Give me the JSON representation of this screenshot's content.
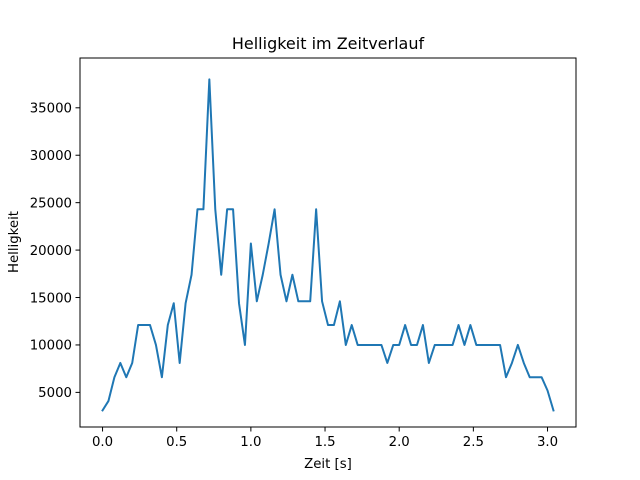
{
  "chart_data": {
    "type": "line",
    "title": "Helligkeit im Zeitverlauf",
    "xlabel": "Zeit [s]",
    "ylabel": "Helligkeit",
    "xlim": [
      -0.152,
      3.192
    ],
    "ylim": [
      1350,
      40250
    ],
    "xticks": [
      0.0,
      0.5,
      1.0,
      1.5,
      2.0,
      2.5,
      3.0
    ],
    "xtick_labels": [
      "0.0",
      "0.5",
      "1.0",
      "1.5",
      "2.0",
      "2.5",
      "3.0"
    ],
    "yticks": [
      5000,
      10000,
      15000,
      20000,
      25000,
      30000,
      35000
    ],
    "ytick_labels": [
      "5000",
      "10000",
      "15000",
      "20000",
      "25000",
      "30000",
      "35000"
    ],
    "grid": false,
    "series_color": "#1f77b4",
    "series": [
      {
        "x": [
          0.0,
          0.04,
          0.08,
          0.12,
          0.16,
          0.2,
          0.24,
          0.28,
          0.32,
          0.36,
          0.4,
          0.44,
          0.48,
          0.52,
          0.56,
          0.6,
          0.64,
          0.68,
          0.72,
          0.76,
          0.8,
          0.84,
          0.88,
          0.92,
          0.96,
          1.0,
          1.04,
          1.08,
          1.12,
          1.16,
          1.2,
          1.24,
          1.28,
          1.32,
          1.36,
          1.4,
          1.44,
          1.48,
          1.52,
          1.56,
          1.6,
          1.64,
          1.68,
          1.72,
          1.76,
          1.8,
          1.84,
          1.88,
          1.92,
          1.96,
          2.0,
          2.04,
          2.08,
          2.12,
          2.16,
          2.2,
          2.24,
          2.28,
          2.32,
          2.36,
          2.4,
          2.44,
          2.48,
          2.52,
          2.56,
          2.6,
          2.64,
          2.68,
          2.72,
          2.76,
          2.8,
          2.84,
          2.88,
          2.92,
          2.96,
          3.0,
          3.04
        ],
        "values": [
          3100,
          4100,
          6600,
          8100,
          6600,
          8100,
          12100,
          12100,
          12100,
          10000,
          6600,
          12100,
          14400,
          8100,
          14400,
          17400,
          24300,
          24300,
          38000,
          24300,
          17400,
          24300,
          24300,
          14400,
          10000,
          20700,
          14600,
          17400,
          20700,
          24300,
          17400,
          14600,
          17400,
          14600,
          14600,
          14600,
          24300,
          14600,
          12100,
          12100,
          14600,
          10000,
          12100,
          10000,
          10000,
          10000,
          10000,
          10000,
          8100,
          10000,
          10000,
          12100,
          10000,
          10000,
          12100,
          8100,
          10000,
          10000,
          10000,
          10000,
          12100,
          10000,
          12100,
          10000,
          10000,
          10000,
          10000,
          10000,
          6600,
          8100,
          10000,
          8100,
          6600,
          6600,
          6600,
          5200,
          3100
        ]
      }
    ]
  }
}
